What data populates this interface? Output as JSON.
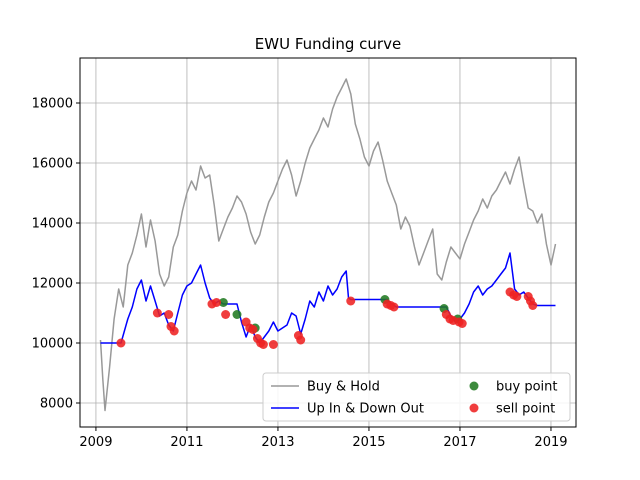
{
  "chart_data": {
    "type": "line",
    "title": "EWU Funding curve",
    "xlabel": "",
    "ylabel": "",
    "xlim": [
      2008.65,
      2019.55
    ],
    "ylim": [
      7200,
      19500
    ],
    "x_ticks": [
      2009,
      2011,
      2013,
      2015,
      2017,
      2019
    ],
    "y_ticks": [
      8000,
      10000,
      12000,
      14000,
      16000,
      18000
    ],
    "grid": true,
    "legend_position": "lower-right",
    "series": [
      {
        "name": "Buy & Hold",
        "style": "line",
        "color": "#999999",
        "points": [
          [
            2009.1,
            10100
          ],
          [
            2009.15,
            8800
          ],
          [
            2009.2,
            7750
          ],
          [
            2009.3,
            9200
          ],
          [
            2009.4,
            10800
          ],
          [
            2009.5,
            11800
          ],
          [
            2009.6,
            11200
          ],
          [
            2009.7,
            12600
          ],
          [
            2009.8,
            13000
          ],
          [
            2009.9,
            13600
          ],
          [
            2010.0,
            14300
          ],
          [
            2010.1,
            13200
          ],
          [
            2010.2,
            14100
          ],
          [
            2010.3,
            13400
          ],
          [
            2010.4,
            12300
          ],
          [
            2010.5,
            11900
          ],
          [
            2010.6,
            12200
          ],
          [
            2010.7,
            13200
          ],
          [
            2010.8,
            13600
          ],
          [
            2010.9,
            14400
          ],
          [
            2011.0,
            15000
          ],
          [
            2011.1,
            15400
          ],
          [
            2011.2,
            15100
          ],
          [
            2011.3,
            15900
          ],
          [
            2011.4,
            15500
          ],
          [
            2011.5,
            15600
          ],
          [
            2011.6,
            14600
          ],
          [
            2011.7,
            13400
          ],
          [
            2011.8,
            13800
          ],
          [
            2011.9,
            14200
          ],
          [
            2012.0,
            14500
          ],
          [
            2012.1,
            14900
          ],
          [
            2012.2,
            14700
          ],
          [
            2012.3,
            14300
          ],
          [
            2012.4,
            13700
          ],
          [
            2012.5,
            13300
          ],
          [
            2012.6,
            13600
          ],
          [
            2012.7,
            14200
          ],
          [
            2012.8,
            14700
          ],
          [
            2012.9,
            15000
          ],
          [
            2013.0,
            15400
          ],
          [
            2013.1,
            15800
          ],
          [
            2013.2,
            16100
          ],
          [
            2013.3,
            15600
          ],
          [
            2013.4,
            14900
          ],
          [
            2013.5,
            15400
          ],
          [
            2013.6,
            16000
          ],
          [
            2013.7,
            16500
          ],
          [
            2013.8,
            16800
          ],
          [
            2013.9,
            17100
          ],
          [
            2014.0,
            17500
          ],
          [
            2014.1,
            17200
          ],
          [
            2014.2,
            17800
          ],
          [
            2014.3,
            18200
          ],
          [
            2014.4,
            18500
          ],
          [
            2014.5,
            18800
          ],
          [
            2014.6,
            18300
          ],
          [
            2014.7,
            17300
          ],
          [
            2014.8,
            16800
          ],
          [
            2014.9,
            16200
          ],
          [
            2015.0,
            15900
          ],
          [
            2015.1,
            16400
          ],
          [
            2015.2,
            16700
          ],
          [
            2015.3,
            16100
          ],
          [
            2015.4,
            15400
          ],
          [
            2015.5,
            15000
          ],
          [
            2015.6,
            14600
          ],
          [
            2015.7,
            13800
          ],
          [
            2015.8,
            14200
          ],
          [
            2015.9,
            13900
          ],
          [
            2016.0,
            13200
          ],
          [
            2016.1,
            12600
          ],
          [
            2016.2,
            13000
          ],
          [
            2016.3,
            13400
          ],
          [
            2016.4,
            13800
          ],
          [
            2016.5,
            12300
          ],
          [
            2016.6,
            12100
          ],
          [
            2016.7,
            12700
          ],
          [
            2016.8,
            13200
          ],
          [
            2016.9,
            13000
          ],
          [
            2017.0,
            12800
          ],
          [
            2017.1,
            13300
          ],
          [
            2017.2,
            13700
          ],
          [
            2017.3,
            14100
          ],
          [
            2017.4,
            14400
          ],
          [
            2017.5,
            14800
          ],
          [
            2017.6,
            14500
          ],
          [
            2017.7,
            14900
          ],
          [
            2017.8,
            15100
          ],
          [
            2017.9,
            15400
          ],
          [
            2018.0,
            15700
          ],
          [
            2018.1,
            15300
          ],
          [
            2018.2,
            15800
          ],
          [
            2018.3,
            16200
          ],
          [
            2018.4,
            15300
          ],
          [
            2018.5,
            14500
          ],
          [
            2018.6,
            14400
          ],
          [
            2018.7,
            14000
          ],
          [
            2018.8,
            14300
          ],
          [
            2018.9,
            13300
          ],
          [
            2019.0,
            12600
          ],
          [
            2019.1,
            13300
          ]
        ]
      },
      {
        "name": "Up In & Down Out",
        "style": "line",
        "color": "#0000ff",
        "points": [
          [
            2009.1,
            10000
          ],
          [
            2009.5,
            10000
          ],
          [
            2009.55,
            10000
          ],
          [
            2009.7,
            10800
          ],
          [
            2009.8,
            11200
          ],
          [
            2009.9,
            11800
          ],
          [
            2010.0,
            12100
          ],
          [
            2010.1,
            11400
          ],
          [
            2010.2,
            11900
          ],
          [
            2010.3,
            11400
          ],
          [
            2010.4,
            10900
          ],
          [
            2010.5,
            11000
          ],
          [
            2010.6,
            10600
          ],
          [
            2010.7,
            10400
          ],
          [
            2010.8,
            11000
          ],
          [
            2010.9,
            11600
          ],
          [
            2011.0,
            11900
          ],
          [
            2011.1,
            12000
          ],
          [
            2011.2,
            12300
          ],
          [
            2011.3,
            12600
          ],
          [
            2011.4,
            12000
          ],
          [
            2011.5,
            11500
          ],
          [
            2011.6,
            11300
          ],
          [
            2011.7,
            11400
          ],
          [
            2011.8,
            11300
          ],
          [
            2012.1,
            11300
          ],
          [
            2012.2,
            10700
          ],
          [
            2012.3,
            10200
          ],
          [
            2012.4,
            10600
          ],
          [
            2012.5,
            10200
          ],
          [
            2012.6,
            10000
          ],
          [
            2012.7,
            10200
          ],
          [
            2012.8,
            10400
          ],
          [
            2012.9,
            10700
          ],
          [
            2013.0,
            10400
          ],
          [
            2013.2,
            10600
          ],
          [
            2013.3,
            11000
          ],
          [
            2013.4,
            10900
          ],
          [
            2013.5,
            10300
          ],
          [
            2013.6,
            10800
          ],
          [
            2013.7,
            11400
          ],
          [
            2013.8,
            11200
          ],
          [
            2013.9,
            11700
          ],
          [
            2014.0,
            11400
          ],
          [
            2014.1,
            11900
          ],
          [
            2014.2,
            11600
          ],
          [
            2014.3,
            11800
          ],
          [
            2014.4,
            12200
          ],
          [
            2014.5,
            12400
          ],
          [
            2014.55,
            11500
          ],
          [
            2014.6,
            11450
          ],
          [
            2015.4,
            11450
          ],
          [
            2015.5,
            11300
          ],
          [
            2015.6,
            11200
          ],
          [
            2016.7,
            11200
          ],
          [
            2016.8,
            10900
          ],
          [
            2016.9,
            10700
          ],
          [
            2017.0,
            10800
          ],
          [
            2017.1,
            11000
          ],
          [
            2017.2,
            11300
          ],
          [
            2017.3,
            11700
          ],
          [
            2017.4,
            11900
          ],
          [
            2017.5,
            11600
          ],
          [
            2017.6,
            11800
          ],
          [
            2017.7,
            11900
          ],
          [
            2017.8,
            12100
          ],
          [
            2017.9,
            12300
          ],
          [
            2018.0,
            12500
          ],
          [
            2018.1,
            13000
          ],
          [
            2018.2,
            11800
          ],
          [
            2018.3,
            11600
          ],
          [
            2018.4,
            11700
          ],
          [
            2018.5,
            11500
          ],
          [
            2018.6,
            11300
          ],
          [
            2018.7,
            11250
          ],
          [
            2019.1,
            11250
          ]
        ]
      },
      {
        "name": "buy point",
        "style": "scatter",
        "color": "#217a21",
        "points": [
          [
            2011.8,
            11350
          ],
          [
            2012.1,
            10950
          ],
          [
            2012.5,
            10500
          ],
          [
            2015.35,
            11450
          ],
          [
            2016.65,
            11150
          ],
          [
            2016.95,
            10800
          ]
        ]
      },
      {
        "name": "sell point",
        "style": "scatter",
        "color": "#ee2222",
        "points": [
          [
            2009.55,
            10000
          ],
          [
            2010.35,
            11000
          ],
          [
            2010.6,
            10950
          ],
          [
            2010.65,
            10550
          ],
          [
            2010.72,
            10400
          ],
          [
            2011.55,
            11300
          ],
          [
            2011.65,
            11350
          ],
          [
            2011.85,
            10950
          ],
          [
            2012.3,
            10700
          ],
          [
            2012.38,
            10500
          ],
          [
            2012.45,
            10450
          ],
          [
            2012.55,
            10150
          ],
          [
            2012.62,
            10000
          ],
          [
            2012.68,
            9950
          ],
          [
            2012.9,
            9950
          ],
          [
            2013.45,
            10250
          ],
          [
            2013.5,
            10100
          ],
          [
            2014.6,
            11400
          ],
          [
            2015.4,
            11300
          ],
          [
            2015.48,
            11250
          ],
          [
            2015.55,
            11200
          ],
          [
            2016.7,
            10950
          ],
          [
            2016.78,
            10800
          ],
          [
            2016.85,
            10750
          ],
          [
            2016.98,
            10700
          ],
          [
            2017.05,
            10650
          ],
          [
            2018.1,
            11700
          ],
          [
            2018.18,
            11600
          ],
          [
            2018.25,
            11550
          ],
          [
            2018.5,
            11550
          ],
          [
            2018.55,
            11400
          ],
          [
            2018.6,
            11250
          ]
        ]
      }
    ]
  }
}
